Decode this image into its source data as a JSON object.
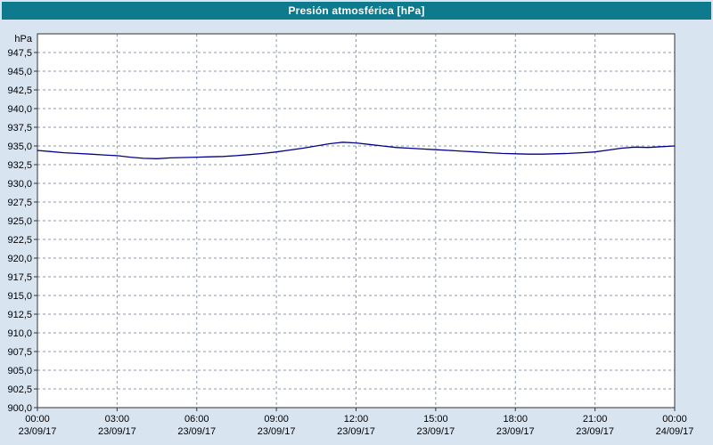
{
  "window": {
    "title": "Presión atmosférica [hPa]"
  },
  "colors": {
    "titlebar": "#0e7a8e",
    "window_bg": "#d9e4f1",
    "plot_bg": "#ffffff",
    "grid": "#8f9aa8",
    "axis": "#333333",
    "line": "#00008b",
    "label_text": "#000000"
  },
  "chart_data": {
    "type": "line",
    "title": "Presión atmosférica [hPa]",
    "unit_label": "hPa",
    "xlabel": "",
    "ylabel": "hPa",
    "ylim": [
      900,
      950
    ],
    "grid": "dashed",
    "legend_position": "none",
    "y_ticks": [
      947.5,
      945.0,
      942.5,
      940.0,
      937.5,
      935.0,
      932.5,
      930.0,
      927.5,
      925.0,
      922.5,
      920.0,
      917.5,
      915.0,
      912.5,
      910.0,
      907.5,
      905.0,
      902.5,
      900.0
    ],
    "y_tick_labels": [
      "947,5",
      "945,0",
      "942,5",
      "940,0",
      "937,5",
      "935,0",
      "932,5",
      "930,0",
      "927,5",
      "925,0",
      "922,5",
      "920,0",
      "917,5",
      "915,0",
      "912,5",
      "910,0",
      "907,5",
      "905,0",
      "902,5",
      "900,0"
    ],
    "x_ticks_hours": [
      0,
      3,
      6,
      9,
      12,
      15,
      18,
      21,
      24
    ],
    "x_tick_times": [
      "00:00",
      "03:00",
      "06:00",
      "09:00",
      "12:00",
      "15:00",
      "18:00",
      "21:00",
      "00:00"
    ],
    "x_tick_dates": [
      "23/09/17",
      "23/09/17",
      "23/09/17",
      "23/09/17",
      "23/09/17",
      "23/09/17",
      "23/09/17",
      "23/09/17",
      "24/09/17"
    ],
    "series": [
      {
        "name": "Presión atmosférica",
        "color": "#00008b",
        "x_hours": [
          0,
          0.5,
          1,
          1.5,
          2,
          2.5,
          3,
          3.5,
          4,
          4.5,
          5,
          5.5,
          6,
          6.5,
          7,
          7.5,
          8,
          8.5,
          9,
          9.5,
          10,
          10.5,
          11,
          11.5,
          12,
          12.5,
          13,
          13.5,
          14,
          14.5,
          15,
          15.5,
          16,
          16.5,
          17,
          17.5,
          18,
          18.5,
          19,
          19.5,
          20,
          20.5,
          21,
          21.5,
          22,
          22.5,
          23,
          23.5,
          24
        ],
        "values": [
          934.4,
          934.25,
          934.1,
          934.0,
          933.9,
          933.8,
          933.7,
          933.5,
          933.35,
          933.3,
          933.4,
          933.45,
          933.5,
          933.55,
          933.6,
          933.7,
          933.85,
          934.0,
          934.2,
          934.45,
          934.7,
          935.0,
          935.3,
          935.5,
          935.4,
          935.2,
          935.0,
          934.8,
          934.7,
          934.6,
          934.5,
          934.4,
          934.3,
          934.2,
          934.1,
          934.0,
          933.95,
          933.9,
          933.9,
          933.95,
          934.0,
          934.1,
          934.2,
          934.45,
          934.7,
          934.85,
          934.8,
          934.9,
          935.0
        ]
      }
    ]
  }
}
